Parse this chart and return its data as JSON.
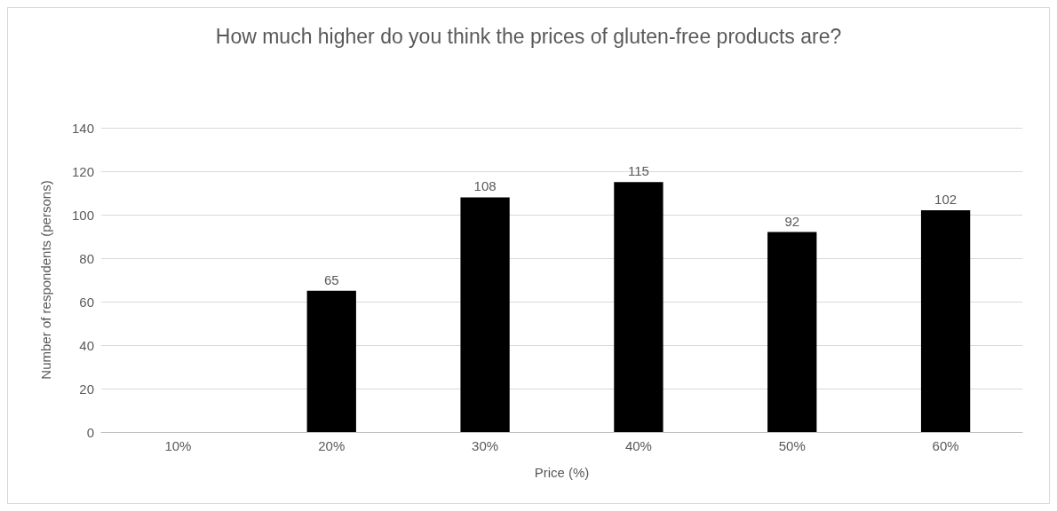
{
  "chart_data": {
    "type": "bar",
    "title": "How much higher do you think the prices of gluten-free products are?",
    "xlabel": "Price (%)",
    "ylabel": "Number of respondents (persons)",
    "categories": [
      "10%",
      "20%",
      "30%",
      "40%",
      "50%",
      "60%"
    ],
    "values": [
      null,
      65,
      108,
      115,
      92,
      102
    ],
    "color": "#000000",
    "ylim": [
      0,
      140
    ],
    "yticks": [
      0,
      20,
      40,
      60,
      80,
      100,
      120,
      140
    ],
    "grid": "y",
    "data_labels": true
  }
}
